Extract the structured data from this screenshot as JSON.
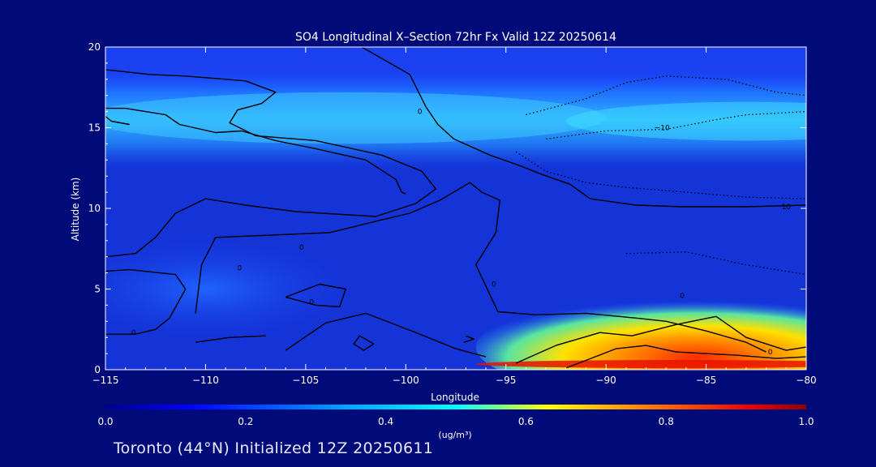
{
  "chart_data": {
    "type": "heatmap",
    "title": "SO4 Longitudinal X–Section 72hr  Fx Valid 12Z 20250614",
    "xlabel": "Longitude",
    "ylabel": "Altitude (km)",
    "xlim": [
      -115,
      -80
    ],
    "ylim": [
      0,
      20
    ],
    "x_ticks": [
      -115,
      -110,
      -105,
      -100,
      -95,
      -90,
      -85,
      -80
    ],
    "x_tick_labels": [
      "−115",
      "−110",
      "−105",
      "−100",
      "−95",
      "−90",
      "−85",
      "−80"
    ],
    "y_ticks": [
      0,
      5,
      10,
      15,
      20
    ],
    "y_tick_labels": [
      "0",
      "5",
      "10",
      "15",
      "20"
    ],
    "grid": false,
    "colorbar": {
      "label": "(ug/m³)",
      "range": [
        0.0,
        1.0
      ],
      "ticks": [
        0.0,
        0.2,
        0.4,
        0.6,
        0.8,
        1.0
      ],
      "tick_labels": [
        "0.0",
        "0.2",
        "0.4",
        "0.6",
        "0.8",
        "1.0"
      ],
      "colormap": "jet"
    },
    "field_features": [
      {
        "lon_range": [
          -115,
          -80
        ],
        "alt_range": [
          13.2,
          17.6
        ],
        "value": 0.38
      },
      {
        "lon_range": [
          -92,
          -80
        ],
        "alt_range": [
          0,
          3.5
        ],
        "value": 0.85
      },
      {
        "lon_range": [
          -115,
          -103
        ],
        "alt_range": [
          2,
          7
        ],
        "value": 0.22
      },
      {
        "lon_range": [
          -115,
          -80
        ],
        "alt_range": [
          0,
          20
        ],
        "value": 0.1
      }
    ],
    "contour_labels": [
      {
        "text": "0",
        "lon": -99.3,
        "alt": 16.0
      },
      {
        "text": "−10",
        "lon": -87.2,
        "alt": 15.0
      },
      {
        "text": "0",
        "lon": -105.2,
        "alt": 7.6
      },
      {
        "text": "0",
        "lon": -108.3,
        "alt": 6.3
      },
      {
        "text": "0",
        "lon": -104.7,
        "alt": 4.2
      },
      {
        "text": "0",
        "lon": -86.2,
        "alt": 4.6
      },
      {
        "text": "10",
        "lon": -81.0,
        "alt": 10.1
      },
      {
        "text": "0",
        "lon": -95.6,
        "alt": 5.3
      },
      {
        "text": "0",
        "lon": -113.6,
        "alt": 2.3
      },
      {
        "text": "0",
        "lon": -81.8,
        "alt": 1.1
      }
    ]
  },
  "caption": "Toronto (44°N) Initialized 12Z 20250611"
}
